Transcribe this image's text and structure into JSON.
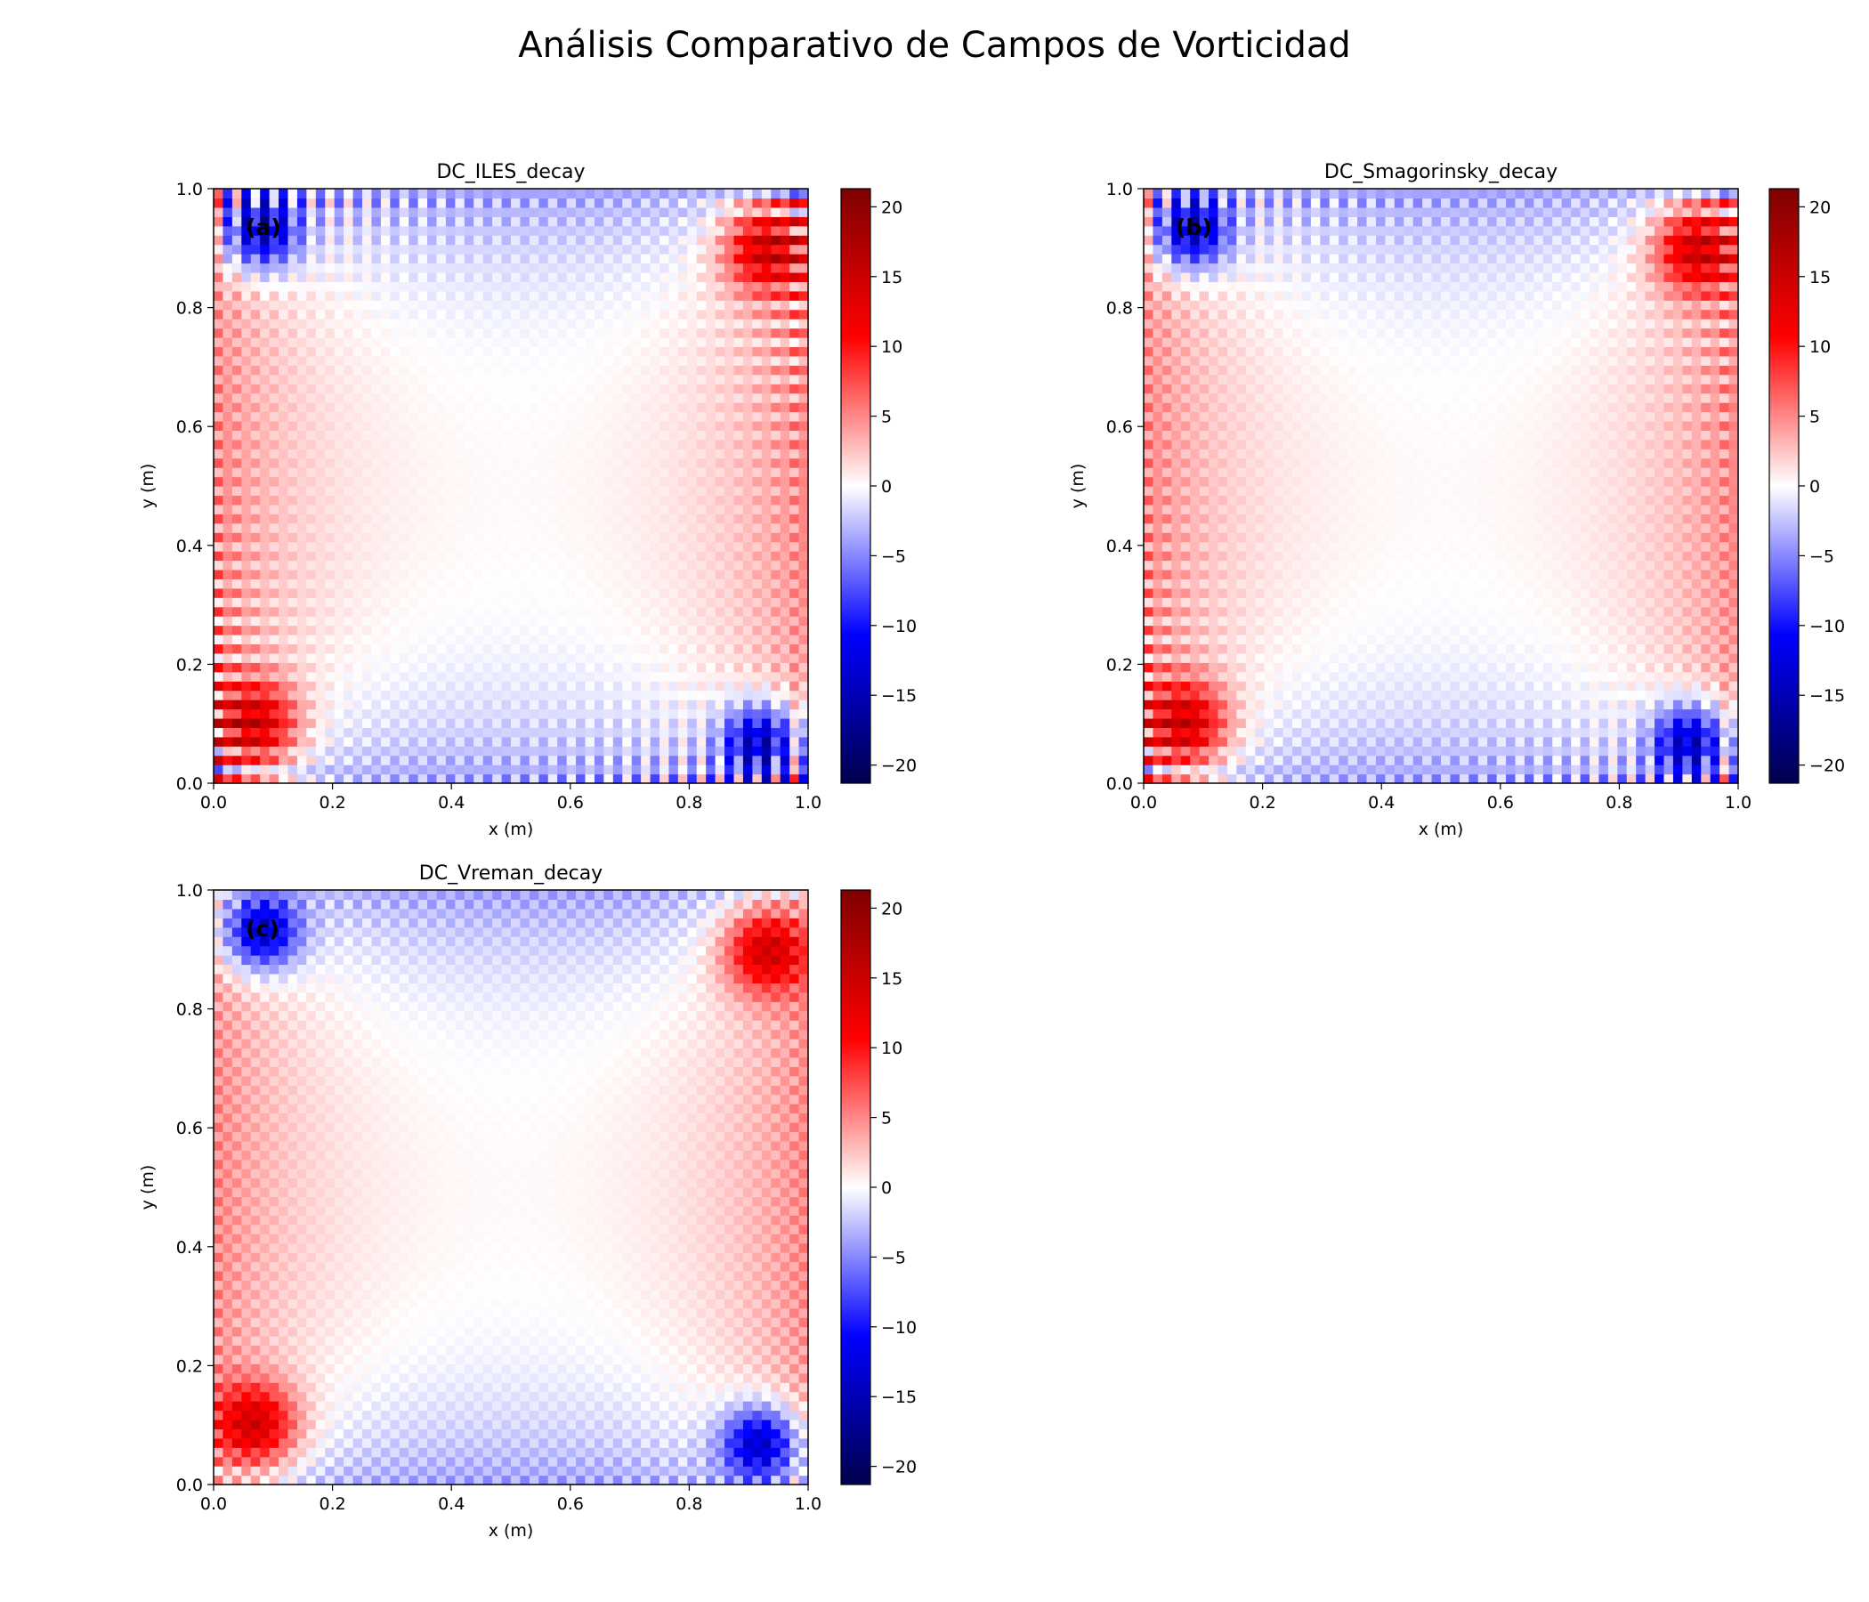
{
  "figure_title": "Análisis Comparativo de Campos de Vorticidad",
  "colormap": {
    "name": "seismic",
    "stops": [
      "#00004c",
      "#0000ff",
      "#ffffff",
      "#ff0000",
      "#7f0000"
    ]
  },
  "chart_data": [
    {
      "type": "heatmap",
      "title": "DC_ILES_decay",
      "panel_label": "(a)",
      "xlabel": "x (m)",
      "ylabel": "y (m)",
      "xlim": [
        0,
        1
      ],
      "ylim": [
        0,
        1
      ],
      "xticks": [
        "0.0",
        "0.2",
        "0.4",
        "0.6",
        "0.8",
        "1.0"
      ],
      "yticks": [
        "0.0",
        "0.2",
        "0.4",
        "0.6",
        "0.8",
        "1.0"
      ],
      "colorbar": {
        "range": [
          -21.3,
          21.3
        ],
        "ticks": [
          "−20",
          "−15",
          "−10",
          "−5",
          "0",
          "5",
          "10",
          "15",
          "20"
        ]
      }
    },
    {
      "type": "heatmap",
      "title": "DC_Smagorinsky_decay",
      "panel_label": "(b)",
      "xlabel": "x (m)",
      "ylabel": "y (m)",
      "xlim": [
        0,
        1
      ],
      "ylim": [
        0,
        1
      ],
      "xticks": [
        "0.0",
        "0.2",
        "0.4",
        "0.6",
        "0.8",
        "1.0"
      ],
      "yticks": [
        "0.0",
        "0.2",
        "0.4",
        "0.6",
        "0.8",
        "1.0"
      ],
      "colorbar": {
        "range": [
          -21.3,
          21.3
        ],
        "ticks": [
          "−20",
          "−15",
          "−10",
          "−5",
          "0",
          "5",
          "10",
          "15",
          "20"
        ]
      }
    },
    {
      "type": "heatmap",
      "title": "DC_Vreman_decay",
      "panel_label": "(c)",
      "xlabel": "x (m)",
      "ylabel": "y (m)",
      "xlim": [
        0,
        1
      ],
      "ylim": [
        0,
        1
      ],
      "xticks": [
        "0.0",
        "0.2",
        "0.4",
        "0.6",
        "0.8",
        "1.0"
      ],
      "yticks": [
        "0.0",
        "0.2",
        "0.4",
        "0.6",
        "0.8",
        "1.0"
      ],
      "colorbar": {
        "range": [
          -21.3,
          21.3
        ],
        "ticks": [
          "−20",
          "−15",
          "−10",
          "−5",
          "0",
          "5",
          "10",
          "15",
          "20"
        ]
      }
    }
  ]
}
